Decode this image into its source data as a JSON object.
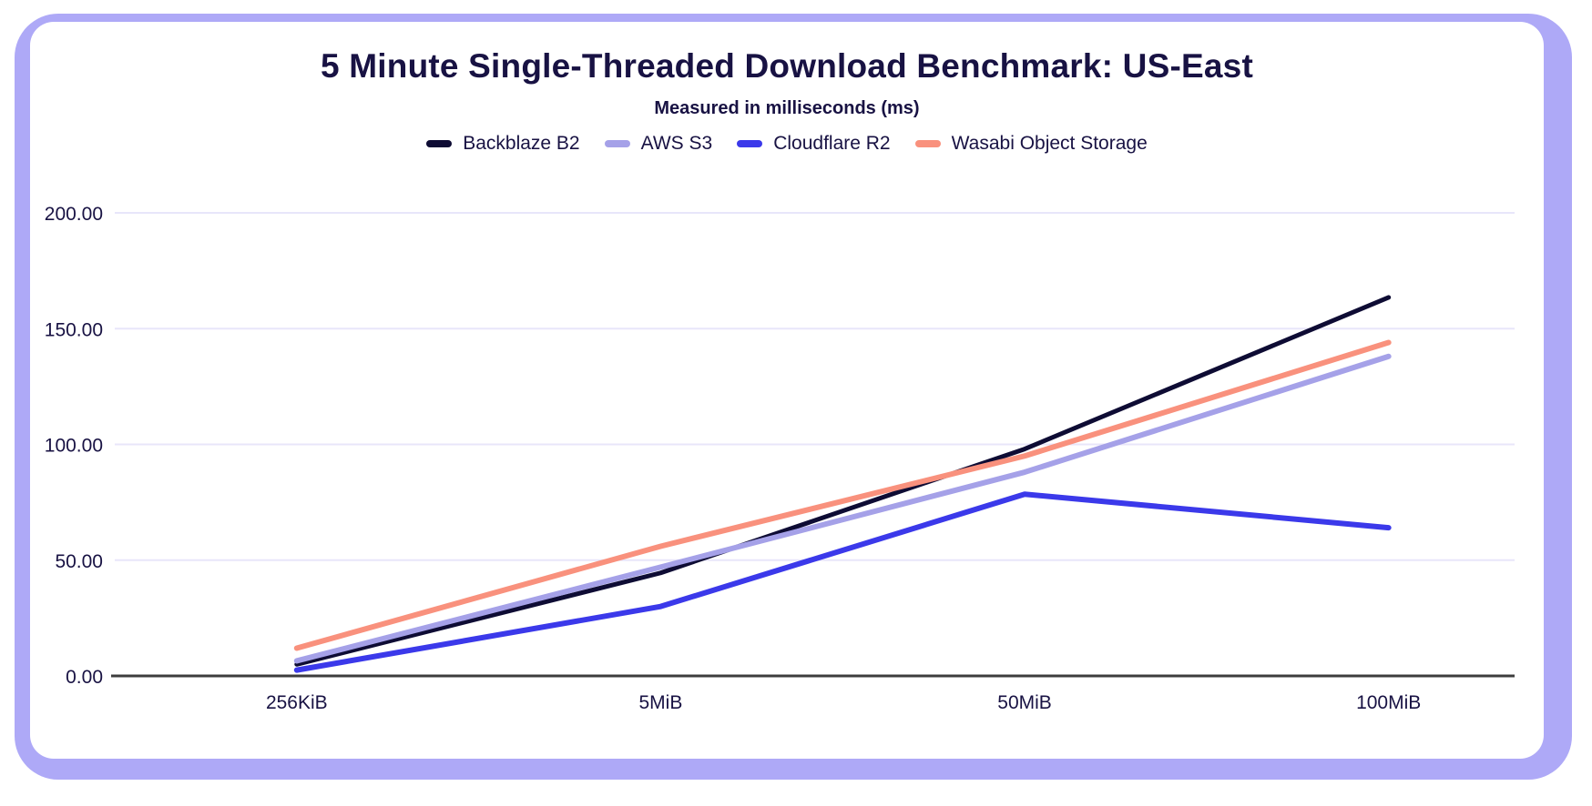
{
  "header": {
    "title": "5 Minute Single-Threaded Download Benchmark: US-East",
    "subtitle": "Measured in milliseconds (ms)"
  },
  "chart_data": {
    "type": "line",
    "title": "5 Minute Single-Threaded Download Benchmark: US-East",
    "subtitle": "Measured in milliseconds (ms)",
    "categories": [
      "256KiB",
      "5MiB",
      "50MiB",
      "100MiB"
    ],
    "series": [
      {
        "name": "Backblaze B2",
        "color": "#0e0c34",
        "values": [
          5,
          44.5,
          98,
          163.5
        ]
      },
      {
        "name": "AWS S3",
        "color": "#a5a1e8",
        "values": [
          6.5,
          47,
          88,
          138
        ]
      },
      {
        "name": "Cloudflare R2",
        "color": "#3b39ea",
        "values": [
          2.5,
          30,
          78.5,
          64
        ]
      },
      {
        "name": "Wasabi Object Storage",
        "color": "#f9917d",
        "values": [
          12,
          56,
          95,
          144
        ]
      }
    ],
    "xlabel": "",
    "ylabel": "",
    "ylim": [
      0,
      200
    ],
    "y_ticks": [
      0,
      50,
      100,
      150,
      200
    ],
    "y_tick_labels": [
      "0.00",
      "50.00",
      "100.00",
      "150.00",
      "200.00"
    ],
    "grid": true,
    "legend_position": "top"
  },
  "colors": {
    "frame": "#aea9f7",
    "card": "#ffffff",
    "text": "#181243",
    "gridline": "#e8e6fa",
    "axis_line": "#3d3d3d"
  }
}
